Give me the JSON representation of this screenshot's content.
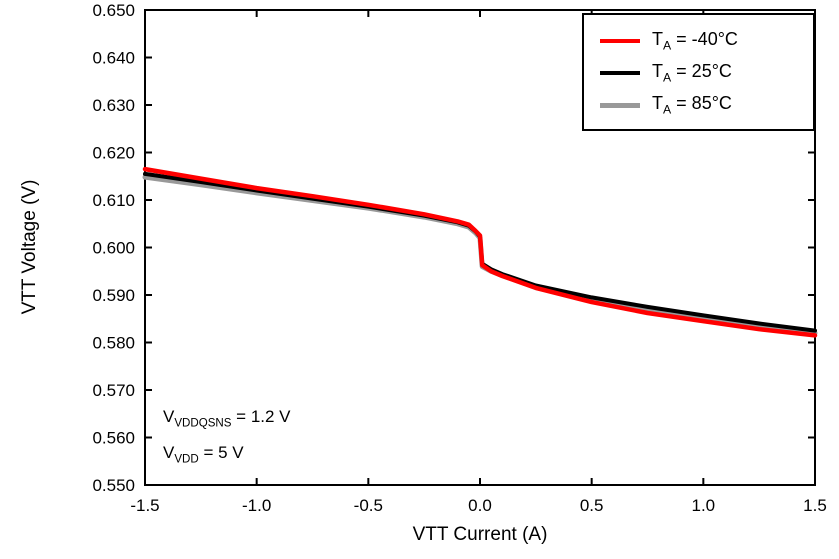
{
  "chart_data": {
    "type": "line",
    "title": "",
    "xlabel": "VTT Current (A)",
    "ylabel": "VTT Voltage (V)",
    "xlim": [
      -1.5,
      1.5
    ],
    "ylim": [
      0.55,
      0.65
    ],
    "grid": false,
    "legend_position": "top-right",
    "xticks": {
      "values": [
        -1.5,
        -1.0,
        -0.5,
        0.0,
        0.5,
        1.0,
        1.5
      ],
      "labels": [
        "-1.5",
        "-1.0",
        "-0.5",
        "0.0",
        "0.5",
        "1.0",
        "1.5"
      ]
    },
    "yticks": {
      "values": [
        0.55,
        0.56,
        0.57,
        0.58,
        0.59,
        0.6,
        0.61,
        0.62,
        0.63,
        0.64,
        0.65
      ],
      "labels": [
        "0.550",
        "0.560",
        "0.570",
        "0.580",
        "0.590",
        "0.600",
        "0.610",
        "0.620",
        "0.630",
        "0.640",
        "0.650"
      ]
    },
    "x": [
      -1.5,
      -1.25,
      -1.0,
      -0.75,
      -0.5,
      -0.25,
      -0.1,
      -0.05,
      -0.02,
      0.0,
      0.01,
      0.05,
      0.1,
      0.25,
      0.5,
      0.75,
      1.0,
      1.25,
      1.5
    ],
    "series": [
      {
        "name": "TA = -40°C",
        "color": "#ff0000",
        "width": 4.5,
        "values": [
          0.6165,
          0.6145,
          0.6125,
          0.6108,
          0.609,
          0.607,
          0.6055,
          0.6048,
          0.6035,
          0.6025,
          0.5963,
          0.595,
          0.594,
          0.5915,
          0.5885,
          0.5862,
          0.5845,
          0.5828,
          0.5815
        ]
      },
      {
        "name": "TA = 25°C",
        "color": "#000000",
        "width": 4,
        "values": [
          0.6155,
          0.6138,
          0.612,
          0.6103,
          0.6086,
          0.6067,
          0.6053,
          0.6046,
          0.6034,
          0.6023,
          0.5966,
          0.5954,
          0.5944,
          0.592,
          0.5895,
          0.5875,
          0.5857,
          0.584,
          0.5825
        ]
      },
      {
        "name": "TA = 85°C",
        "color": "#999999",
        "width": 5,
        "values": [
          0.6148,
          0.6132,
          0.6115,
          0.6099,
          0.6083,
          0.6064,
          0.605,
          0.6043,
          0.6031,
          0.602,
          0.596,
          0.595,
          0.5941,
          0.5916,
          0.5889,
          0.5867,
          0.585,
          0.5833,
          0.582
        ]
      }
    ]
  },
  "legend": {
    "entries": [
      {
        "pre": "T",
        "sub": "A",
        "post": " = -40°C"
      },
      {
        "pre": "T",
        "sub": "A",
        "post": " = 25°C"
      },
      {
        "pre": "T",
        "sub": "A",
        "post": " = 85°C"
      }
    ]
  },
  "annotation": {
    "lines": [
      {
        "pre": "V",
        "sub": "VDDQSNS",
        "post": " = 1.2 V"
      },
      {
        "pre": "V",
        "sub": "VDD",
        "post": " = 5 V"
      }
    ]
  },
  "colors": {
    "axis": "#000000",
    "background": "#ffffff",
    "series_red": "#ff0000",
    "series_black": "#000000",
    "series_gray": "#999999"
  }
}
